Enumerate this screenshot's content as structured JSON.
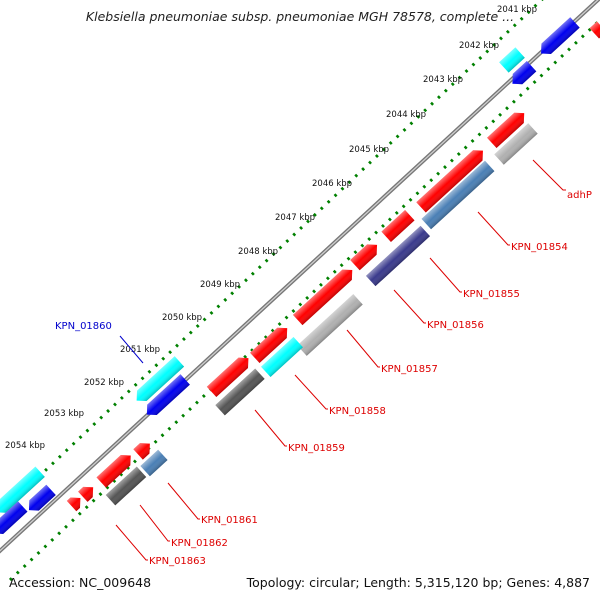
{
  "title": "Klebsiella pneumoniae subsp. pneumoniae MGH 78578, complete ...",
  "footer": {
    "accession": "Accession: NC_009648",
    "topology": "Topology: circular; Length: 5,315,120 bp; Genes: 4,887"
  },
  "ticks": [
    "2041 kbp",
    "2042 kbp",
    "2043 kbp",
    "2044 kbp",
    "2045 kbp",
    "2046 kbp",
    "2047 kbp",
    "2048 kbp",
    "2049 kbp",
    "2050 kbp",
    "2051 kbp",
    "2052 kbp",
    "2053 kbp",
    "2054 kbp"
  ],
  "labels": [
    "adhP",
    "KPN_01854",
    "KPN_01855",
    "KPN_01856",
    "KPN_01857",
    "KPN_01858",
    "KPN_01859",
    "KPN_01860",
    "KPN_01861",
    "KPN_01862",
    "KPN_01863"
  ],
  "colors": {
    "forward_gene": "#ff0000",
    "reverse_gene": "#0000ee",
    "cyan_gene": "#00ffff",
    "gray_gene": "#b0b0b0",
    "dark_gray_gene": "#555555",
    "steel_gene": "#4a7fb5",
    "navy_gene": "#3a3a8c",
    "backbone": "#888888",
    "tick_dots": "#008000",
    "label_red": "#dd0000",
    "label_blue": "#0000cc"
  }
}
